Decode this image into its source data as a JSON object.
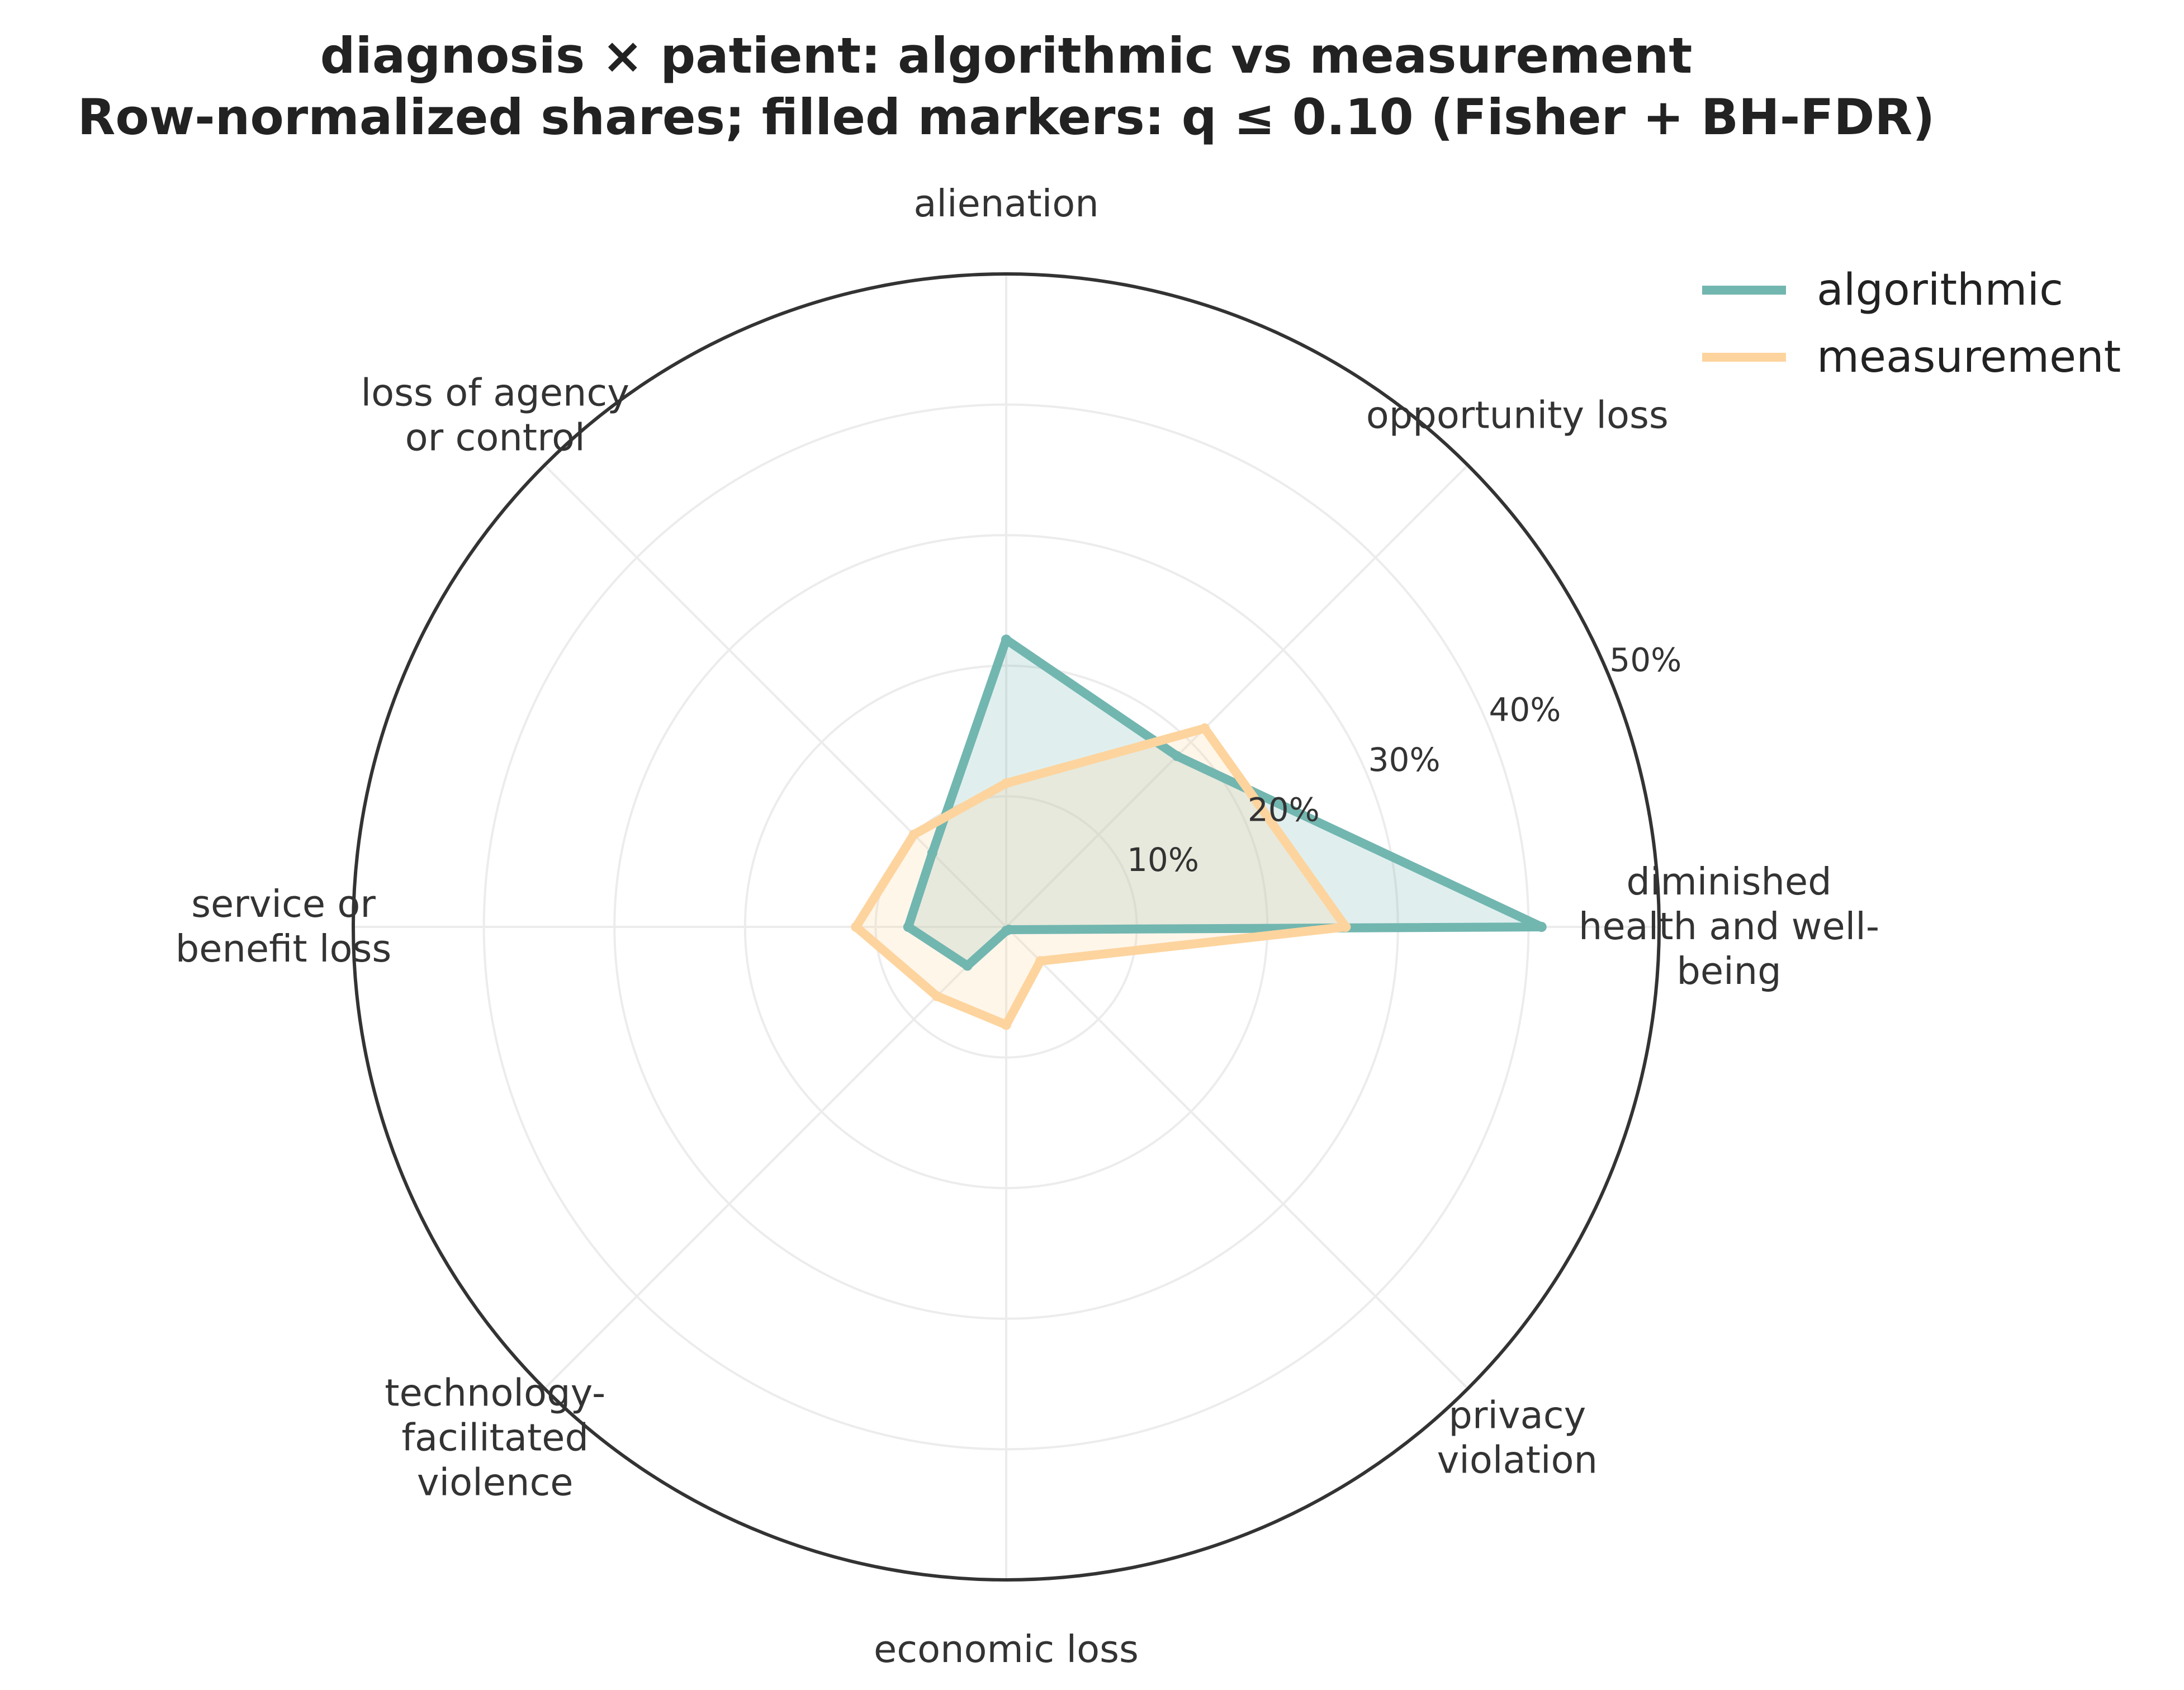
{
  "chart_data": {
    "type": "radar",
    "title_lines": [
      "diagnosis × patient: algorithmic vs measurement",
      "Row-normalized shares; filled markers: q ≤ 0.10 (Fisher + BH-FDR)"
    ],
    "categories": [
      {
        "label_lines": [
          "diminished",
          "health and well-",
          "being"
        ]
      },
      {
        "label_lines": [
          "opportunity loss"
        ]
      },
      {
        "label_lines": [
          "alienation"
        ]
      },
      {
        "label_lines": [
          "loss of agency",
          "or control"
        ]
      },
      {
        "label_lines": [
          "service or",
          "benefit loss"
        ]
      },
      {
        "label_lines": [
          "technology-",
          "facilitated",
          "violence"
        ]
      },
      {
        "label_lines": [
          "economic loss"
        ]
      },
      {
        "label_lines": [
          "privacy",
          "violation"
        ]
      }
    ],
    "series": [
      {
        "name": "algorithmic",
        "color": "#72b6b0",
        "values": [
          41,
          18.5,
          22,
          8,
          7.5,
          4.2,
          0.3,
          0.3
        ]
      },
      {
        "name": "measurement",
        "color": "#fdd49e",
        "values": [
          26,
          21.5,
          11,
          10,
          11.5,
          7.5,
          7.5,
          3.7
        ]
      }
    ],
    "r_ticks": [
      "10%",
      "20%",
      "30%",
      "40%",
      "50%"
    ],
    "r_tick_values": [
      10,
      20,
      30,
      40,
      50
    ],
    "rlim": [
      0,
      50
    ],
    "grid": true,
    "legend_position": "top-right"
  }
}
